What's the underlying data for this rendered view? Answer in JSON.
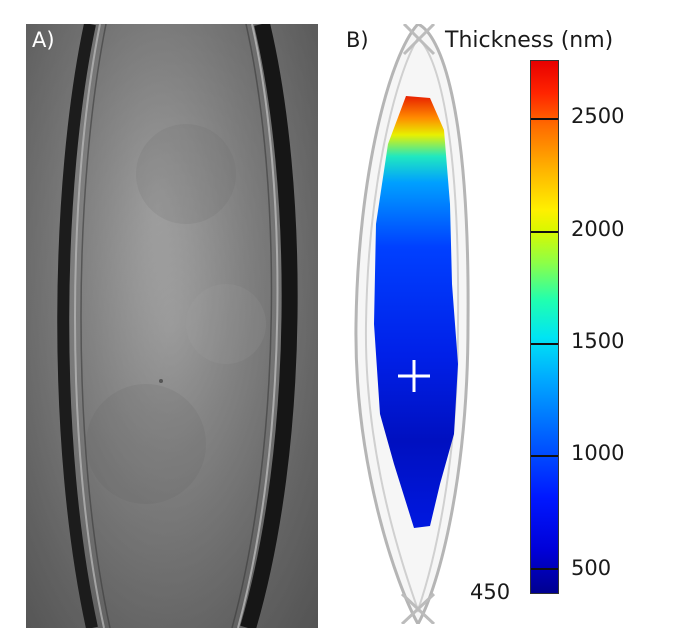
{
  "panel_a": {
    "label": "A)"
  },
  "panel_b": {
    "label": "B)"
  },
  "colorbar": {
    "title": "Thickness (nm)",
    "min_label": "450",
    "ticks": [
      "2500",
      "2000",
      "1500",
      "1000",
      "500"
    ],
    "colors": {
      "low": "#00008f",
      "mid": "#20ffb0",
      "high": "#e80000"
    }
  },
  "marker": {
    "icon": "crosshair-icon"
  }
}
